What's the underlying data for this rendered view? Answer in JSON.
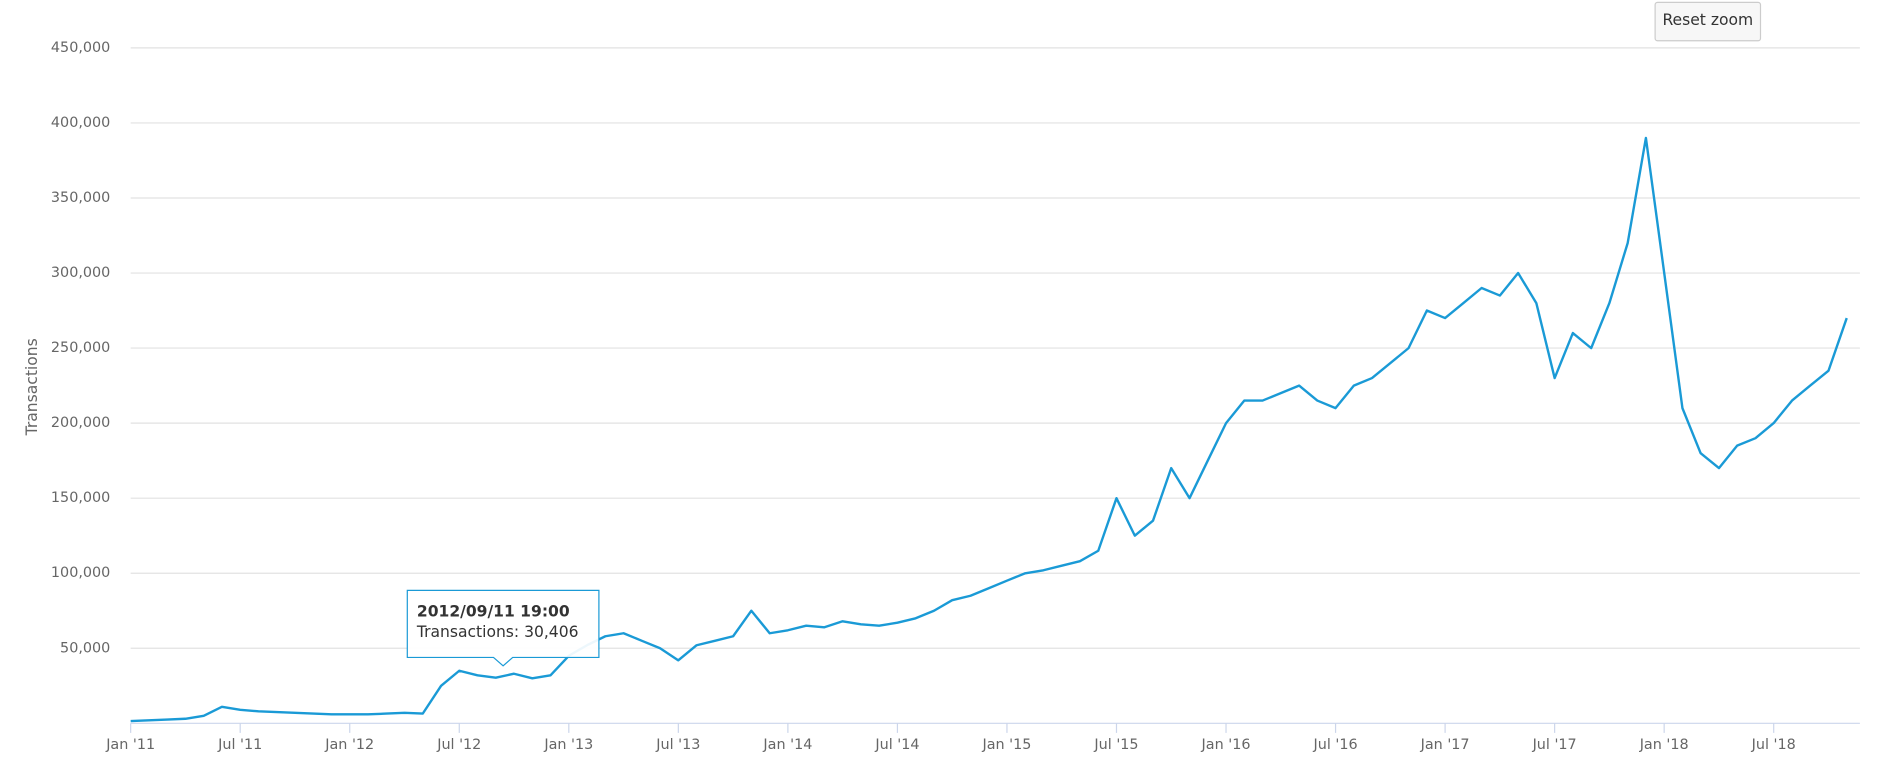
{
  "chart_data": {
    "type": "line",
    "y_label": "Transactions",
    "color": "#1a9ad6",
    "grid": true,
    "x": [
      "2011-01",
      "2011-02",
      "2011-03",
      "2011-04",
      "2011-05",
      "2011-06",
      "2011-07",
      "2011-08",
      "2011-09",
      "2011-10",
      "2011-11",
      "2011-12",
      "2012-01",
      "2012-02",
      "2012-03",
      "2012-04",
      "2012-05",
      "2012-06",
      "2012-07",
      "2012-08",
      "2012-09",
      "2012-10",
      "2012-11",
      "2012-12",
      "2013-01",
      "2013-02",
      "2013-03",
      "2013-04",
      "2013-05",
      "2013-06",
      "2013-07",
      "2013-08",
      "2013-09",
      "2013-10",
      "2013-11",
      "2013-12",
      "2014-01",
      "2014-02",
      "2014-03",
      "2014-04",
      "2014-05",
      "2014-06",
      "2014-07",
      "2014-08",
      "2014-09",
      "2014-10",
      "2014-11",
      "2014-12",
      "2015-01",
      "2015-02",
      "2015-03",
      "2015-04",
      "2015-05",
      "2015-06",
      "2015-07",
      "2015-08",
      "2015-09",
      "2015-10",
      "2015-11",
      "2015-12",
      "2016-01",
      "2016-02",
      "2016-03",
      "2016-04",
      "2016-05",
      "2016-06",
      "2016-07",
      "2016-08",
      "2016-09",
      "2016-10",
      "2016-11",
      "2016-12",
      "2017-01",
      "2017-02",
      "2017-03",
      "2017-04",
      "2017-05",
      "2017-06",
      "2017-07",
      "2017-08",
      "2017-09",
      "2017-10",
      "2017-11",
      "2017-12",
      "2018-01",
      "2018-02",
      "2018-03",
      "2018-04",
      "2018-05",
      "2018-06",
      "2018-07",
      "2018-08",
      "2018-09",
      "2018-10",
      "2018-11"
    ],
    "values": [
      1500,
      2000,
      2500,
      3000,
      5000,
      11000,
      9000,
      8000,
      7500,
      7000,
      6500,
      6000,
      6000,
      6000,
      6500,
      7000,
      6500,
      25000,
      35000,
      32000,
      30406,
      33000,
      30000,
      32000,
      45000,
      52000,
      58000,
      60000,
      55000,
      50000,
      42000,
      52000,
      55000,
      58000,
      75000,
      60000,
      62000,
      65000,
      64000,
      68000,
      66000,
      65000,
      67000,
      70000,
      75000,
      82000,
      85000,
      90000,
      95000,
      100000,
      102000,
      105000,
      108000,
      115000,
      150000,
      125000,
      135000,
      170000,
      150000,
      175000,
      200000,
      215000,
      215000,
      220000,
      225000,
      215000,
      210000,
      225000,
      230000,
      240000,
      250000,
      275000,
      270000,
      280000,
      290000,
      285000,
      300000,
      280000,
      230000,
      260000,
      250000,
      280000,
      320000,
      390000,
      300000,
      210000,
      180000,
      170000,
      185000,
      190000,
      200000,
      215000,
      225000,
      235000,
      270000
    ],
    "xlim": [
      "2011-01",
      "2018-11"
    ],
    "xticks": [
      {
        "value": "2011-01",
        "label": "Jan '11"
      },
      {
        "value": "2011-07",
        "label": "Jul '11"
      },
      {
        "value": "2012-01",
        "label": "Jan '12"
      },
      {
        "value": "2012-07",
        "label": "Jul '12"
      },
      {
        "value": "2013-01",
        "label": "Jan '13"
      },
      {
        "value": "2013-07",
        "label": "Jul '13"
      },
      {
        "value": "2014-01",
        "label": "Jan '14"
      },
      {
        "value": "2014-07",
        "label": "Jul '14"
      },
      {
        "value": "2015-01",
        "label": "Jan '15"
      },
      {
        "value": "2015-07",
        "label": "Jul '15"
      },
      {
        "value": "2016-01",
        "label": "Jan '16"
      },
      {
        "value": "2016-07",
        "label": "Jul '16"
      },
      {
        "value": "2017-01",
        "label": "Jan '17"
      },
      {
        "value": "2017-07",
        "label": "Jul '17"
      },
      {
        "value": "2018-01",
        "label": "Jan '18"
      },
      {
        "value": "2018-07",
        "label": "Jul '18"
      }
    ],
    "ylim": [
      0,
      450000
    ],
    "yticks": [
      {
        "value": 50000,
        "label": "50,000"
      },
      {
        "value": 100000,
        "label": "100,000"
      },
      {
        "value": 150000,
        "label": "150,000"
      },
      {
        "value": 200000,
        "label": "200,000"
      },
      {
        "value": 250000,
        "label": "250,000"
      },
      {
        "value": 300000,
        "label": "300,000"
      },
      {
        "value": 350000,
        "label": "350,000"
      },
      {
        "value": 400000,
        "label": "400,000"
      },
      {
        "value": 450000,
        "label": "450,000"
      }
    ],
    "tooltip": {
      "date": "2012/09/11 19:00",
      "text": "Transactions: 30,406",
      "value": 30406
    },
    "reset_button": "Reset zoom"
  }
}
